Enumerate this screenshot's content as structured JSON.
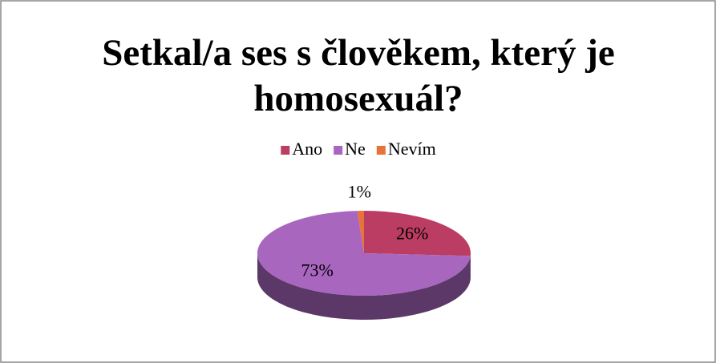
{
  "chart_data": {
    "type": "pie",
    "title": "Setkal/a ses s člověkem, který je homosexuál?",
    "categories": [
      "Ano",
      "Ne",
      "Nevím"
    ],
    "values": [
      26,
      73,
      1
    ],
    "value_labels": [
      "26%",
      "73%",
      "1%"
    ],
    "colors": [
      "#bb3d63",
      "#a866bf",
      "#e8733a"
    ],
    "legend": "top"
  }
}
